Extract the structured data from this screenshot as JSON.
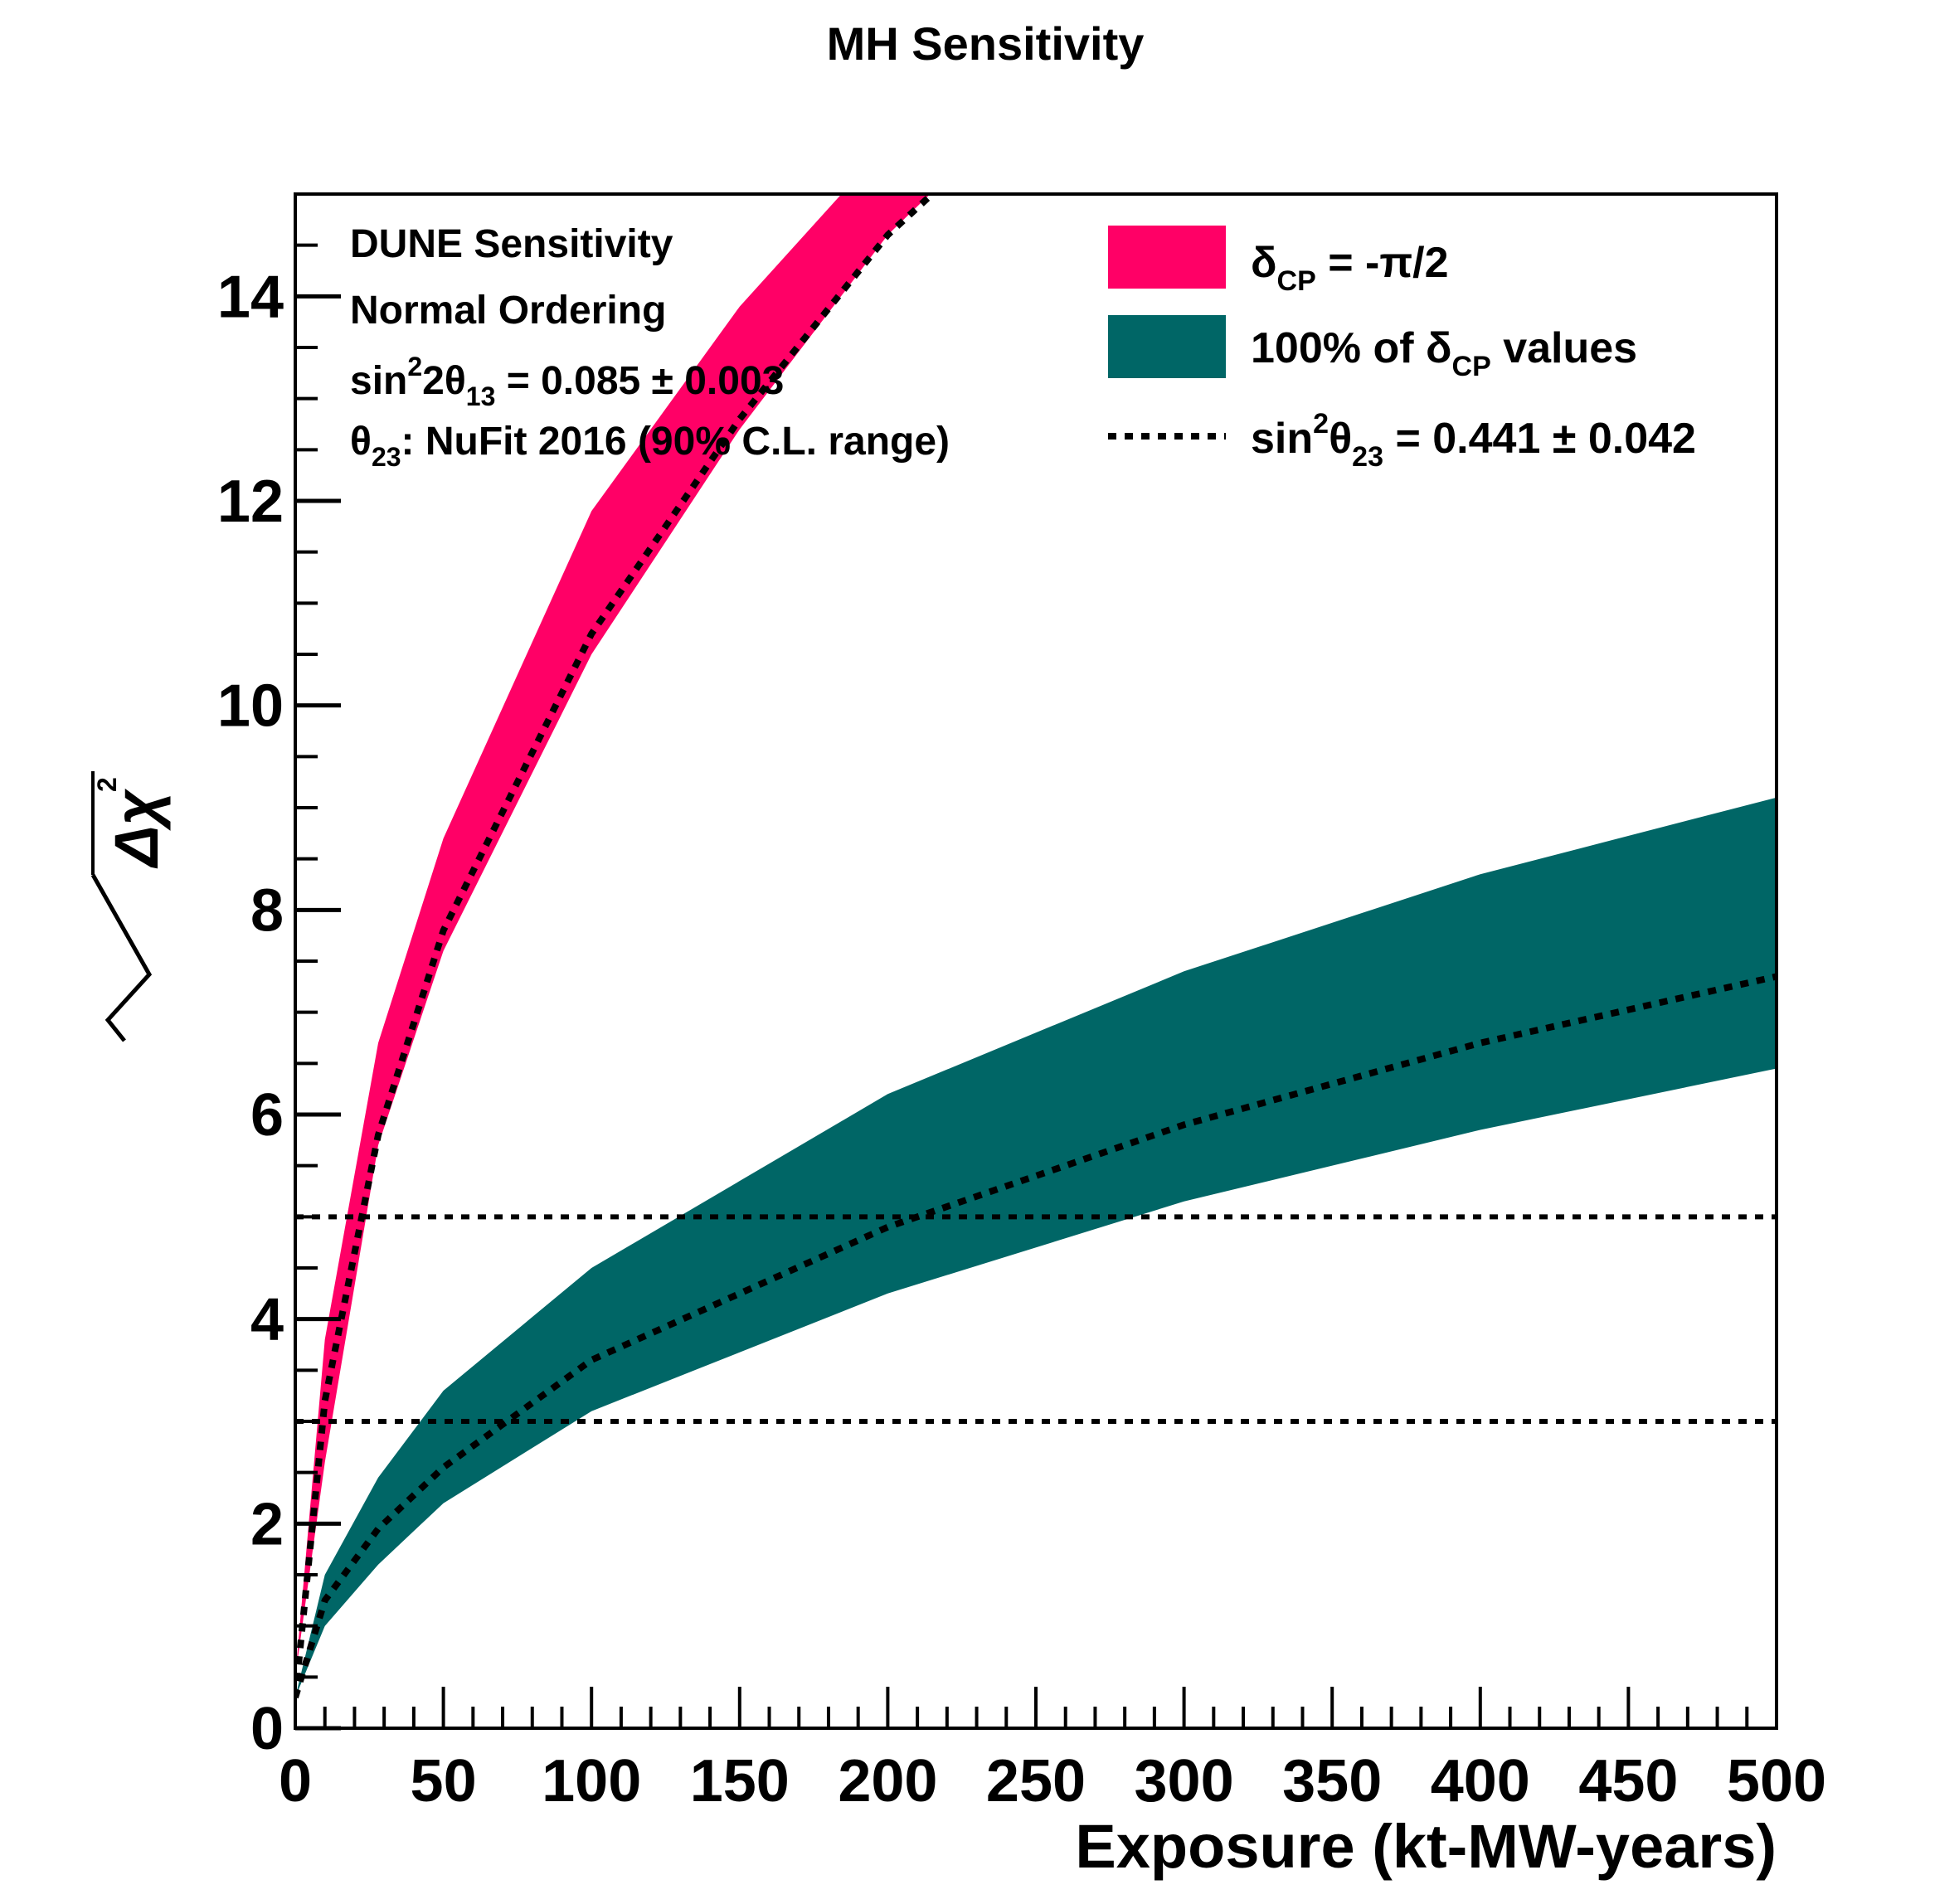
{
  "chart_data": {
    "type": "area",
    "title": "MH Sensitivity",
    "xlabel": "Exposure (kt-MW-years)",
    "ylabel": "√Δχ²",
    "xlim": [
      0,
      500
    ],
    "ylim": [
      0,
      15
    ],
    "x_ticks": [
      "0",
      "50",
      "100",
      "150",
      "200",
      "250",
      "300",
      "350",
      "400",
      "450",
      "500"
    ],
    "y_ticks": [
      "0",
      "2",
      "4",
      "6",
      "8",
      "10",
      "12",
      "14"
    ],
    "annotations": [
      "DUNE Sensitivity",
      "Normal Ordering",
      "sin²2θ13 = 0.085 ± 0.003",
      "θ23: NuFit 2016 (90% C.L. range)"
    ],
    "legend_position": "top-right",
    "series": [
      {
        "name": "δCP = -π/2",
        "kind": "band",
        "color": "#ff0066",
        "x": [
          0,
          10,
          28,
          50,
          100,
          150,
          200,
          225
        ],
        "lower": [
          0.5,
          2.6,
          5.7,
          7.6,
          10.5,
          12.7,
          14.6,
          15.3
        ],
        "upper": [
          0.5,
          3.8,
          6.7,
          8.7,
          11.9,
          13.9,
          15.5,
          16.0
        ]
      },
      {
        "name": "100% of δCP values",
        "kind": "band",
        "color": "#006666",
        "x": [
          0,
          10,
          28,
          50,
          100,
          200,
          300,
          400,
          500
        ],
        "lower": [
          0.3,
          1.0,
          1.6,
          2.2,
          3.1,
          4.25,
          5.15,
          5.85,
          6.45
        ],
        "upper": [
          0.3,
          1.5,
          2.45,
          3.3,
          4.5,
          6.2,
          7.4,
          8.35,
          9.1
        ]
      },
      {
        "name": "sin²θ23 = 0.441 ± 0.042",
        "kind": "dotted",
        "color": "#000000",
        "x": [
          0,
          10,
          28,
          50,
          100,
          150,
          200,
          215
        ],
        "y": [
          0.3,
          3.2,
          5.8,
          7.8,
          10.7,
          12.8,
          14.6,
          15.0
        ]
      },
      {
        "name": "",
        "kind": "dotted",
        "color": "#000000",
        "x": [
          0,
          10,
          28,
          50,
          100,
          200,
          300,
          400,
          500
        ],
        "y": [
          0.3,
          1.25,
          1.95,
          2.55,
          3.6,
          4.9,
          5.9,
          6.7,
          7.35
        ]
      },
      {
        "name": "",
        "kind": "hline",
        "color": "#000000",
        "y": 5
      },
      {
        "name": "",
        "kind": "hline",
        "color": "#000000",
        "y": 3
      }
    ],
    "legend": [
      {
        "main": "δ",
        "sub": "CP",
        "rest": " = -π/2"
      },
      {
        "main": "100% of  δ",
        "sub": "CP",
        "rest": " values"
      },
      {
        "main": "sin²θ",
        "sub": "23",
        "rest": " = 0.441 ± 0.042"
      }
    ]
  }
}
